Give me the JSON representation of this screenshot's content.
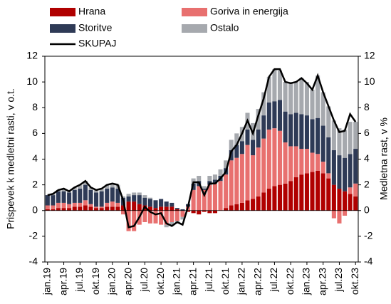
{
  "chart_data": {
    "type": "bar",
    "stacked": true,
    "y_label": "Prispevek k medletni rasti, v o.t.",
    "y2_label": "Medletna rast, v %",
    "categories": [
      "jan.19",
      null,
      null,
      "apr.19",
      null,
      null,
      "jul.19",
      null,
      null,
      "okt.19",
      null,
      null,
      "jan.20",
      null,
      null,
      "apr.20",
      null,
      null,
      "jul.20",
      null,
      null,
      "okt.20",
      null,
      null,
      "jan.21",
      null,
      null,
      "apr.21",
      null,
      null,
      "jul.21",
      null,
      null,
      "okt.21",
      null,
      null,
      "jan.22",
      null,
      null,
      "apr.22",
      null,
      null,
      "jul.22",
      null,
      null,
      "okt.22",
      null,
      null,
      "jan.23",
      null,
      null,
      "apr.23",
      null,
      null,
      "jul.23",
      null,
      null,
      "okt.23"
    ],
    "series": [
      {
        "name": "Hrana",
        "color": "#b00000",
        "values": [
          0.1,
          0.1,
          0.2,
          0.2,
          0.2,
          0.3,
          0.3,
          0.4,
          0.3,
          0.2,
          0.2,
          0.3,
          0.3,
          0.3,
          0.4,
          0.7,
          0.7,
          0.5,
          0.4,
          0.3,
          0.2,
          0.3,
          0.3,
          0.3,
          0.1,
          0.0,
          -0.1,
          -0.2,
          -0.3,
          -0.1,
          -0.2,
          -0.2,
          0.0,
          0.2,
          0.4,
          0.5,
          0.6,
          0.8,
          0.9,
          1.1,
          1.4,
          1.7,
          1.9,
          2.0,
          2.1,
          2.3,
          2.6,
          2.8,
          2.9,
          3.0,
          3.1,
          2.9,
          2.5,
          2.0,
          1.7,
          1.5,
          1.3,
          1.1
        ]
      },
      {
        "name": "Goriva in energija",
        "color": "#e8706f",
        "values": [
          0.3,
          0.3,
          0.4,
          0.4,
          0.3,
          0.3,
          0.3,
          0.4,
          0.2,
          0.1,
          0.1,
          0.3,
          0.4,
          0.3,
          -0.3,
          -1.6,
          -1.6,
          -1.1,
          -0.9,
          -1.0,
          -1.0,
          -1.1,
          -1.1,
          -0.9,
          -0.8,
          -0.5,
          0.3,
          1.6,
          1.9,
          1.6,
          2.0,
          2.1,
          2.3,
          2.6,
          3.5,
          3.6,
          3.8,
          4.3,
          3.4,
          3.8,
          4.2,
          4.6,
          4.5,
          4.2,
          3.2,
          2.7,
          2.4,
          2.0,
          1.9,
          1.5,
          1.3,
          0.9,
          0.4,
          -0.6,
          -1.0,
          -0.4,
          0.5,
          1.0
        ]
      },
      {
        "name": "Storitve",
        "color": "#2e3a56",
        "values": [
          0.8,
          0.8,
          0.9,
          0.9,
          0.9,
          1.0,
          1.1,
          1.2,
          1.1,
          1.1,
          1.2,
          1.1,
          1.1,
          1.1,
          0.6,
          0.4,
          0.5,
          0.7,
          0.6,
          0.6,
          0.6,
          0.6,
          0.4,
          0.3,
          0.1,
          0.1,
          0.2,
          0.5,
          0.4,
          0.1,
          0.3,
          0.3,
          0.4,
          0.5,
          0.8,
          1.0,
          1.0,
          1.2,
          1.2,
          1.4,
          1.8,
          2.1,
          2.1,
          2.4,
          2.4,
          2.5,
          2.6,
          2.7,
          2.6,
          2.6,
          2.8,
          2.8,
          2.8,
          2.7,
          2.6,
          2.6,
          2.6,
          2.7
        ]
      },
      {
        "name": "Ostalo",
        "color": "#a6a9ae",
        "values": [
          0.0,
          0.1,
          0.1,
          0.2,
          0.1,
          0.2,
          0.3,
          0.3,
          0.2,
          0.2,
          0.2,
          0.3,
          0.3,
          0.3,
          0.1,
          0.2,
          0.2,
          0.2,
          0.2,
          0.1,
          0.0,
          0.0,
          -0.2,
          -0.3,
          -0.2,
          -0.2,
          0.0,
          0.4,
          0.4,
          0.2,
          0.4,
          0.4,
          0.5,
          0.6,
          0.8,
          0.9,
          1.1,
          1.3,
          1.3,
          1.6,
          1.8,
          2.0,
          2.5,
          2.3,
          2.3,
          2.4,
          2.4,
          2.8,
          2.6,
          2.3,
          3.3,
          2.6,
          2.4,
          2.3,
          2.1,
          2.2,
          2.5,
          2.1
        ]
      },
      {
        "name": "SKUPAJ",
        "type": "line",
        "axis": "y2",
        "color": "#000000",
        "values": [
          1.2,
          1.3,
          1.6,
          1.7,
          1.5,
          1.8,
          2.0,
          2.3,
          1.8,
          1.6,
          1.7,
          2.0,
          2.1,
          2.0,
          0.8,
          -1.3,
          -1.2,
          -0.5,
          0.3,
          -0.1,
          -0.3,
          -0.2,
          -1.0,
          -1.2,
          -0.9,
          -1.1,
          0.3,
          2.2,
          2.2,
          1.2,
          2.1,
          2.1,
          2.5,
          3.0,
          4.6,
          5.1,
          6.0,
          7.0,
          6.0,
          7.4,
          8.7,
          10.4,
          11.0,
          11.0,
          10.0,
          9.9,
          10.0,
          10.3,
          9.9,
          9.4,
          10.5,
          9.2,
          8.1,
          7.0,
          6.1,
          6.2,
          7.5,
          6.9
        ]
      }
    ],
    "ylim": [
      -4,
      12
    ],
    "yticks": [
      -4,
      -2,
      0,
      2,
      4,
      6,
      8,
      10,
      12
    ],
    "y2lim": [
      -4,
      12
    ],
    "y2ticks": [
      -4,
      -2,
      0,
      2,
      4,
      6,
      8,
      10,
      12
    ],
    "grid": false
  }
}
